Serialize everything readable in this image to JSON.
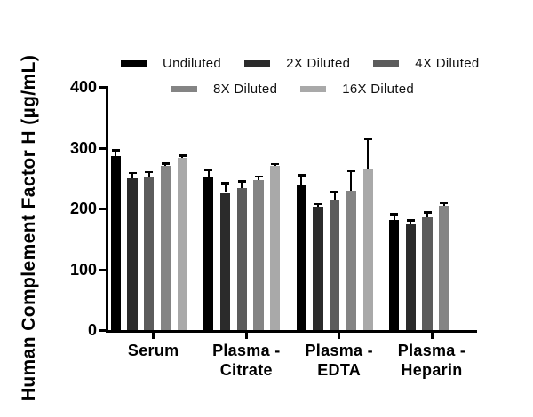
{
  "chart_data": {
    "type": "bar",
    "title": "",
    "xlabel": "",
    "ylabel": "Human Complement Factor H (µg/mL)",
    "ylim": [
      0,
      400
    ],
    "yticks": [
      0,
      100,
      200,
      300,
      400
    ],
    "grid": false,
    "legend_position": "top, two rows",
    "error_bars": "upper only, black T-caps",
    "categories": [
      "Serum",
      "Plasma - Citrate",
      "Plasma - EDTA",
      "Plasma - Heparin"
    ],
    "category_label_lines": [
      [
        "Serum"
      ],
      [
        "Plasma -",
        "Citrate"
      ],
      [
        "Plasma -",
        "EDTA"
      ],
      [
        "Plasma -",
        "Heparin"
      ]
    ],
    "series": [
      {
        "name": "Undiluted",
        "color": "#000000",
        "values": [
          286,
          252,
          239,
          181
        ],
        "errors_plus": [
          10,
          11,
          16,
          10
        ]
      },
      {
        "name": "2X Diluted",
        "color": "#2b2b2b",
        "values": [
          250,
          227,
          203,
          174
        ],
        "errors_plus": [
          9,
          15,
          5,
          7
        ]
      },
      {
        "name": "4X Diluted",
        "color": "#5c5c5c",
        "values": [
          251,
          234,
          215,
          186
        ],
        "errors_plus": [
          9,
          11,
          13,
          8
        ]
      },
      {
        "name": "8X Diluted",
        "color": "#848484",
        "values": [
          270,
          247,
          229,
          205
        ],
        "errors_plus": [
          4,
          6,
          33,
          4
        ]
      },
      {
        "name": "16X Diluted",
        "color": "#a9a9a9",
        "values": [
          283,
          270,
          264,
          null
        ],
        "errors_plus": [
          4,
          3,
          50,
          null
        ]
      }
    ],
    "legend_rows": [
      [
        0,
        1,
        2
      ],
      [
        3,
        4
      ]
    ],
    "axis_color": "#000000",
    "background_color": "#ffffff"
  }
}
